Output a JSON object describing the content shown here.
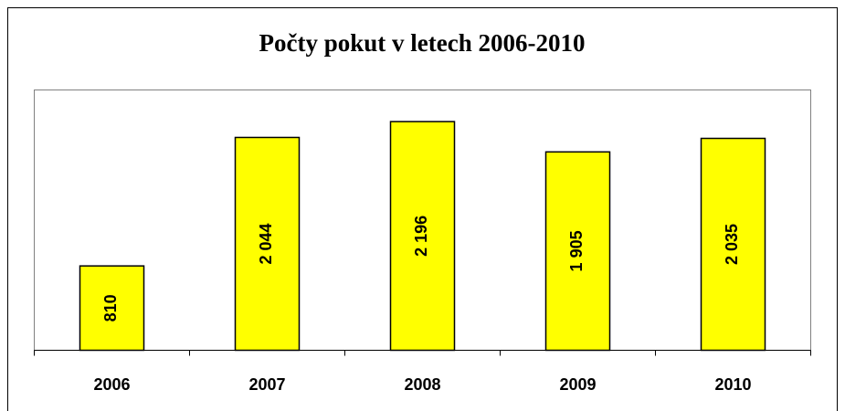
{
  "chart_data": {
    "type": "bar",
    "title": "Počty pokut v letech 2006-2010",
    "categories": [
      "2006",
      "2007",
      "2008",
      "2009",
      "2010"
    ],
    "values": [
      810,
      2044,
      2196,
      1905,
      2035
    ],
    "value_labels": [
      "810",
      "2 044",
      "2 196",
      "1 905",
      "2 035"
    ],
    "color": "#ffff00",
    "ylim": [
      0,
      2500
    ]
  }
}
